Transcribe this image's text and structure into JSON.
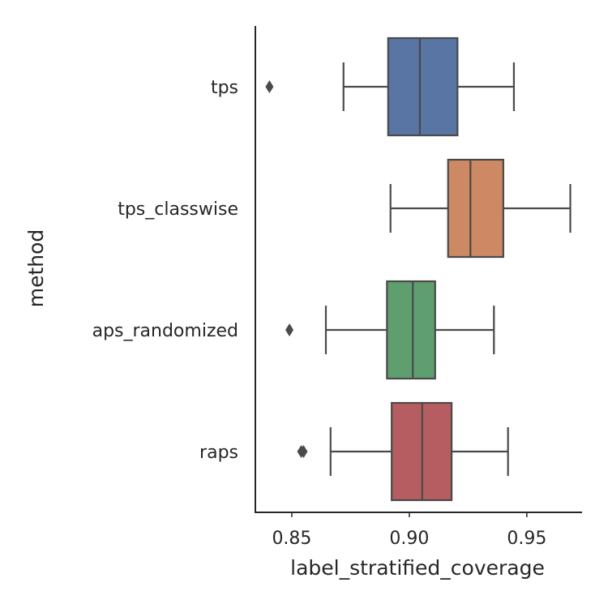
{
  "chart_data": {
    "type": "box",
    "orientation": "horizontal",
    "xlabel": "label_stratified_coverage",
    "ylabel": "method",
    "xlim": [
      0.8345,
      0.9735
    ],
    "xticks": [
      0.85,
      0.9,
      0.95
    ],
    "xtick_labels": [
      "0.85",
      "0.90",
      "0.95"
    ],
    "grid": false,
    "categories": [
      "tps",
      "tps_classwise",
      "aps_randomized",
      "raps"
    ],
    "colors": [
      "#5875a4",
      "#cc8963",
      "#5f9e6e",
      "#b55d60"
    ],
    "edge_color": "#4a4a4a",
    "boxes": [
      {
        "label": "tps",
        "whisker_low": 0.872,
        "q1": 0.891,
        "median": 0.9045,
        "q3": 0.9205,
        "whisker_high": 0.9445,
        "outliers": [
          0.8405
        ]
      },
      {
        "label": "tps_classwise",
        "whisker_low": 0.892,
        "q1": 0.9165,
        "median": 0.926,
        "q3": 0.94,
        "whisker_high": 0.9685,
        "outliers": []
      },
      {
        "label": "aps_randomized",
        "whisker_low": 0.8645,
        "q1": 0.8905,
        "median": 0.9015,
        "q3": 0.911,
        "whisker_high": 0.936,
        "outliers": [
          0.849
        ]
      },
      {
        "label": "raps",
        "whisker_low": 0.8665,
        "q1": 0.8925,
        "median": 0.9055,
        "q3": 0.918,
        "whisker_high": 0.942,
        "outliers": [
          0.854,
          0.855
        ]
      }
    ]
  }
}
